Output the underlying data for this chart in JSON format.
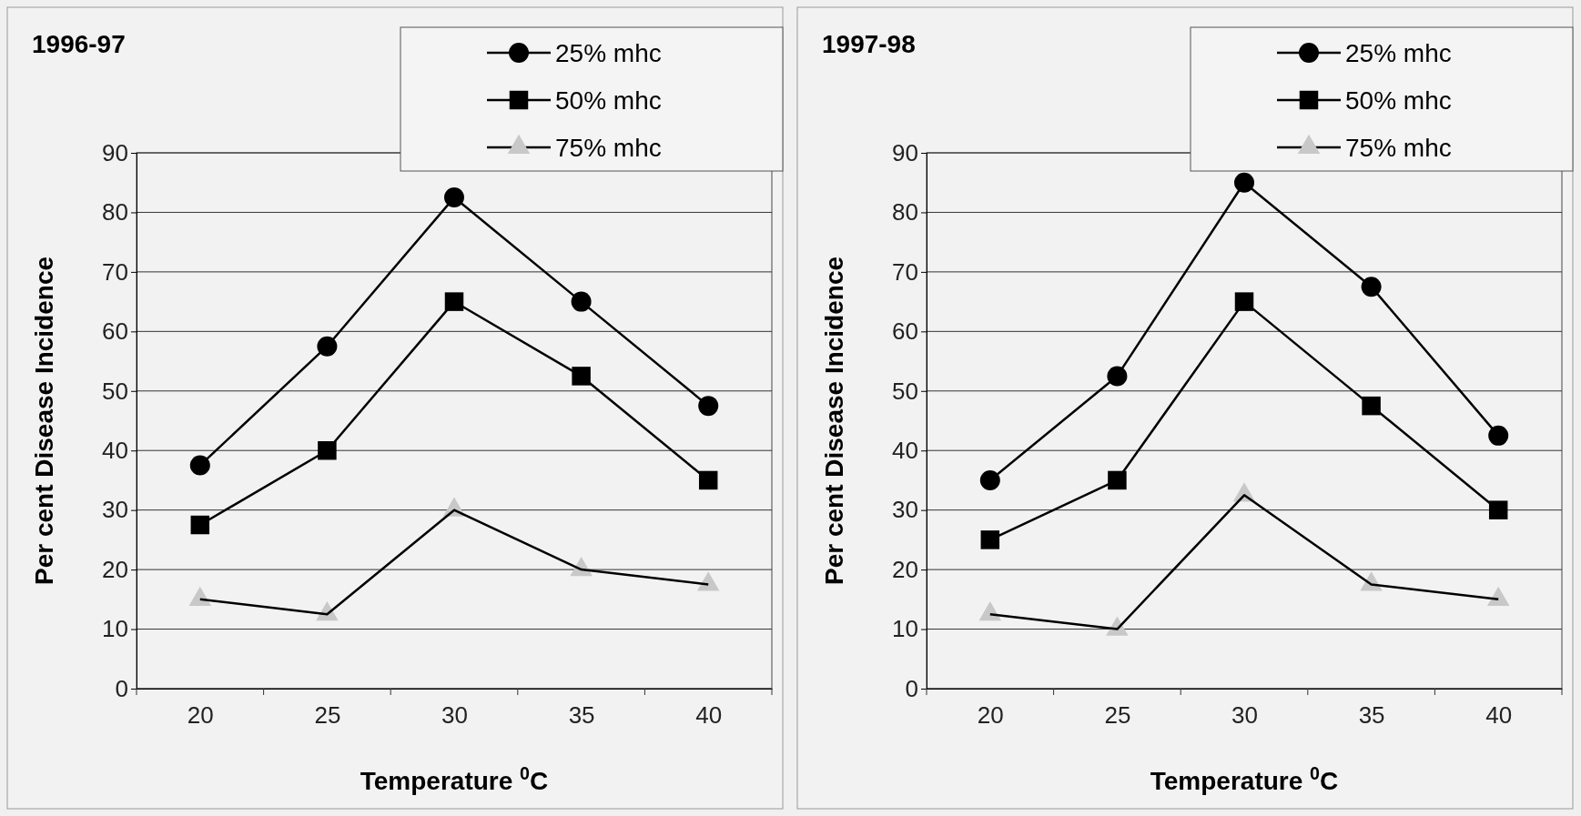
{
  "chart_data": [
    {
      "type": "line",
      "title": "1996-97",
      "xlabel": "Temperature $^{0}$C",
      "ylabel": "Per cent Disease Incidence",
      "categories": [
        "20",
        "25",
        "30",
        "35",
        "40"
      ],
      "ylim": [
        0,
        90
      ],
      "yticks": [
        0,
        10,
        20,
        30,
        40,
        50,
        60,
        70,
        80,
        90
      ],
      "grid": "y",
      "legend": "top right",
      "series": [
        {
          "name": "25% mhc",
          "color": "#000000",
          "marker": "circle",
          "values": [
            37.5,
            57.5,
            82.5,
            65,
            47.5
          ]
        },
        {
          "name": "50% mhc",
          "color": "#000000",
          "marker": "square",
          "values": [
            27.5,
            40,
            65,
            52.5,
            35
          ]
        },
        {
          "name": "75% mhc",
          "color": "#c8c8c8",
          "marker": "triangle",
          "values": [
            15,
            12.5,
            30,
            20,
            17.5
          ]
        }
      ]
    },
    {
      "type": "line",
      "title": "1997-98",
      "xlabel": "Temperature $^{0}$C",
      "ylabel": "Per cent Disease Incidence",
      "categories": [
        "20",
        "25",
        "30",
        "35",
        "40"
      ],
      "ylim": [
        0,
        90
      ],
      "yticks": [
        0,
        10,
        20,
        30,
        40,
        50,
        60,
        70,
        80,
        90
      ],
      "grid": "y",
      "legend": "top right",
      "series": [
        {
          "name": "25% mhc",
          "color": "#000000",
          "marker": "circle",
          "values": [
            35,
            52.5,
            85,
            67.5,
            42.5
          ]
        },
        {
          "name": "50% mhc",
          "color": "#000000",
          "marker": "square",
          "values": [
            25,
            35,
            65,
            47.5,
            30
          ]
        },
        {
          "name": "75% mhc",
          "color": "#c8c8c8",
          "marker": "triangle",
          "values": [
            12.5,
            10,
            32.5,
            17.5,
            15
          ]
        }
      ]
    }
  ]
}
